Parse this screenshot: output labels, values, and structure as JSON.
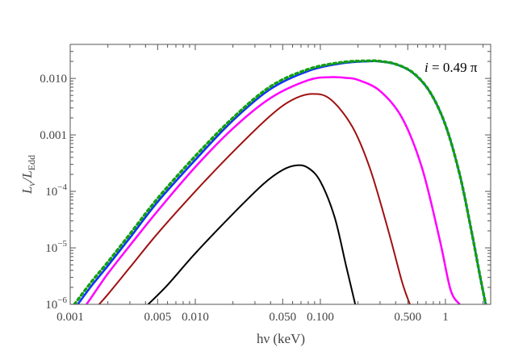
{
  "chart_data": {
    "type": "line",
    "title": "",
    "xlabel": "hν (keV)",
    "ylabel_main": "L",
    "ylabel_sub1": "ν",
    "ylabel_mid": "/L",
    "ylabel_sub2": "Edd",
    "xscale": "log",
    "yscale": "log",
    "xlim": [
      0.001,
      2.3
    ],
    "ylim": [
      1e-06,
      0.04
    ],
    "x_ticks": [
      {
        "value": 0.001,
        "label": "0.001"
      },
      {
        "value": 0.005,
        "label": "0.005"
      },
      {
        "value": 0.01,
        "label": "0.010"
      },
      {
        "value": 0.05,
        "label": "0.050"
      },
      {
        "value": 0.1,
        "label": "0.100"
      },
      {
        "value": 0.5,
        "label": "0.500"
      },
      {
        "value": 1,
        "label": "1"
      }
    ],
    "y_ticks": [
      {
        "value": 1e-06,
        "base": "10",
        "exp": "−6"
      },
      {
        "value": 1e-05,
        "base": "10",
        "exp": "−5"
      },
      {
        "value": 0.0001,
        "base": "10",
        "exp": "−4"
      },
      {
        "value": 0.001,
        "label": "0.001"
      },
      {
        "value": 0.01,
        "label": "0.010"
      }
    ],
    "annotation": {
      "italic": "i",
      "text": " = 0.49 π"
    },
    "series": [
      {
        "name": "black",
        "color": "#000000",
        "dash": "",
        "width": 2,
        "x": [
          0.0042,
          0.006,
          0.01,
          0.02,
          0.035,
          0.05,
          0.065,
          0.08,
          0.1,
          0.13,
          0.16,
          0.19
        ],
        "y": [
          1e-06,
          2.2e-06,
          8e-06,
          4e-05,
          0.000135,
          0.00024,
          0.00029,
          0.00026,
          0.00015,
          3.5e-05,
          5e-06,
          1e-06
        ]
      },
      {
        "name": "darkred",
        "color": "#a01010",
        "dash": "",
        "width": 2,
        "x": [
          0.0017,
          0.002,
          0.003,
          0.005,
          0.01,
          0.02,
          0.04,
          0.06,
          0.085,
          0.12,
          0.18,
          0.25,
          0.35,
          0.45,
          0.52
        ],
        "y": [
          1e-06,
          1.5e-06,
          4.5e-06,
          1.8e-05,
          0.0001,
          0.0005,
          0.0022,
          0.0042,
          0.0053,
          0.0043,
          0.0014,
          0.00025,
          2e-05,
          2.5e-06,
          1e-06
        ]
      },
      {
        "name": "magenta",
        "color": "#ff00ff",
        "dash": "",
        "width": 2.5,
        "x": [
          0.00135,
          0.0015,
          0.002,
          0.003,
          0.005,
          0.01,
          0.02,
          0.04,
          0.08,
          0.12,
          0.16,
          0.2,
          0.3,
          0.45,
          0.65,
          0.9,
          1.1,
          1.3
        ],
        "y": [
          1e-06,
          1.4e-06,
          3.5e-06,
          1.1e-05,
          4.5e-05,
          0.00027,
          0.0013,
          0.0045,
          0.0093,
          0.0105,
          0.0102,
          0.0094,
          0.006,
          0.002,
          0.00026,
          1.4e-05,
          1.8e-06,
          1e-06
        ]
      },
      {
        "name": "blue",
        "color": "#1030ff",
        "dash": "",
        "width": 2.5,
        "x": [
          0.00115,
          0.0015,
          0.002,
          0.003,
          0.005,
          0.01,
          0.02,
          0.04,
          0.08,
          0.15,
          0.25,
          0.3,
          0.4,
          0.55,
          0.75,
          1,
          1.3,
          1.6,
          1.9,
          2.1
        ],
        "y": [
          1e-06,
          2.2e-06,
          4.8e-06,
          1.5e-05,
          6.5e-05,
          0.00036,
          0.0018,
          0.0065,
          0.0135,
          0.0185,
          0.0201,
          0.0199,
          0.0178,
          0.0125,
          0.0058,
          0.0015,
          0.0002,
          2.2e-05,
          3e-06,
          1e-06
        ]
      },
      {
        "name": "green-dotted",
        "color": "#12a012",
        "dash": "3,4",
        "width": 3.5,
        "x": [
          0.00108,
          0.0015,
          0.002,
          0.003,
          0.005,
          0.01,
          0.02,
          0.04,
          0.08,
          0.15,
          0.25,
          0.3,
          0.4,
          0.55,
          0.75,
          1,
          1.3,
          1.6,
          1.9,
          2.1
        ],
        "y": [
          1e-06,
          2.6e-06,
          5.6e-06,
          1.75e-05,
          7.5e-05,
          0.00042,
          0.002,
          0.0072,
          0.0145,
          0.0193,
          0.0205,
          0.0201,
          0.0179,
          0.0126,
          0.0058,
          0.0015,
          0.0002,
          2.2e-05,
          3e-06,
          1e-06
        ]
      }
    ]
  }
}
